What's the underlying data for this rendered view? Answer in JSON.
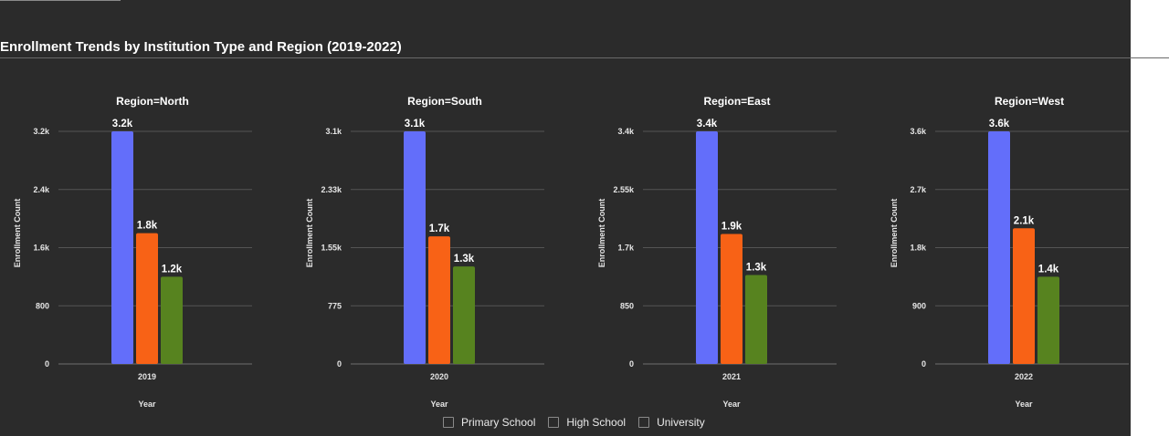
{
  "title": "Enrollment Trends by Institution Type and Region (2019-2022)",
  "legend": {
    "items": [
      {
        "label": "Primary School",
        "color": "#636efa"
      },
      {
        "label": "High School",
        "color": "#f86216"
      },
      {
        "label": "University",
        "color": "#57831f"
      }
    ]
  },
  "chart_data": {
    "type": "bar",
    "series_names": [
      "Primary School",
      "High School",
      "University"
    ],
    "colors": [
      "#636efa",
      "#f86216",
      "#57831f"
    ],
    "facets": [
      {
        "title": "Region=North",
        "category": "2019",
        "xlabel": "Year",
        "ylabel": "Enrollment Count",
        "values": [
          3200,
          1800,
          1200
        ],
        "labels": [
          "3.2k",
          "1.8k",
          "1.2k"
        ],
        "ylim": [
          0,
          3200
        ],
        "ticks": [
          0,
          800,
          1600,
          2400,
          3200
        ],
        "tick_labels": [
          "0",
          "800",
          "1.6k",
          "2.4k",
          "3.2k"
        ]
      },
      {
        "title": "Region=South",
        "category": "2020",
        "xlabel": "Year",
        "ylabel": "Enrollment Count",
        "values": [
          3100,
          1700,
          1300
        ],
        "labels": [
          "3.1k",
          "1.7k",
          "1.3k"
        ],
        "ylim": [
          0,
          3100
        ],
        "ticks": [
          0,
          775,
          1550,
          2325,
          3100
        ],
        "tick_labels": [
          "0",
          "775",
          "1.55k",
          "2.33k",
          "3.1k"
        ]
      },
      {
        "title": "Region=East",
        "category": "2021",
        "xlabel": "Year",
        "ylabel": "Enrollment Count",
        "values": [
          3400,
          1900,
          1300
        ],
        "labels": [
          "3.4k",
          "1.9k",
          "1.3k"
        ],
        "ylim": [
          0,
          3400
        ],
        "ticks": [
          0,
          850,
          1700,
          2550,
          3400
        ],
        "tick_labels": [
          "0",
          "850",
          "1.7k",
          "2.55k",
          "3.4k"
        ]
      },
      {
        "title": "Region=West",
        "category": "2022",
        "xlabel": "Year",
        "ylabel": "Enrollment Count",
        "values": [
          3600,
          2100,
          1350
        ],
        "labels": [
          "3.6k",
          "2.1k",
          "1.4k"
        ],
        "ylim": [
          0,
          3600
        ],
        "ticks": [
          0,
          900,
          1800,
          2700,
          3600
        ],
        "tick_labels": [
          "0",
          "900",
          "1.8k",
          "2.7k",
          "3.6k"
        ]
      }
    ]
  }
}
